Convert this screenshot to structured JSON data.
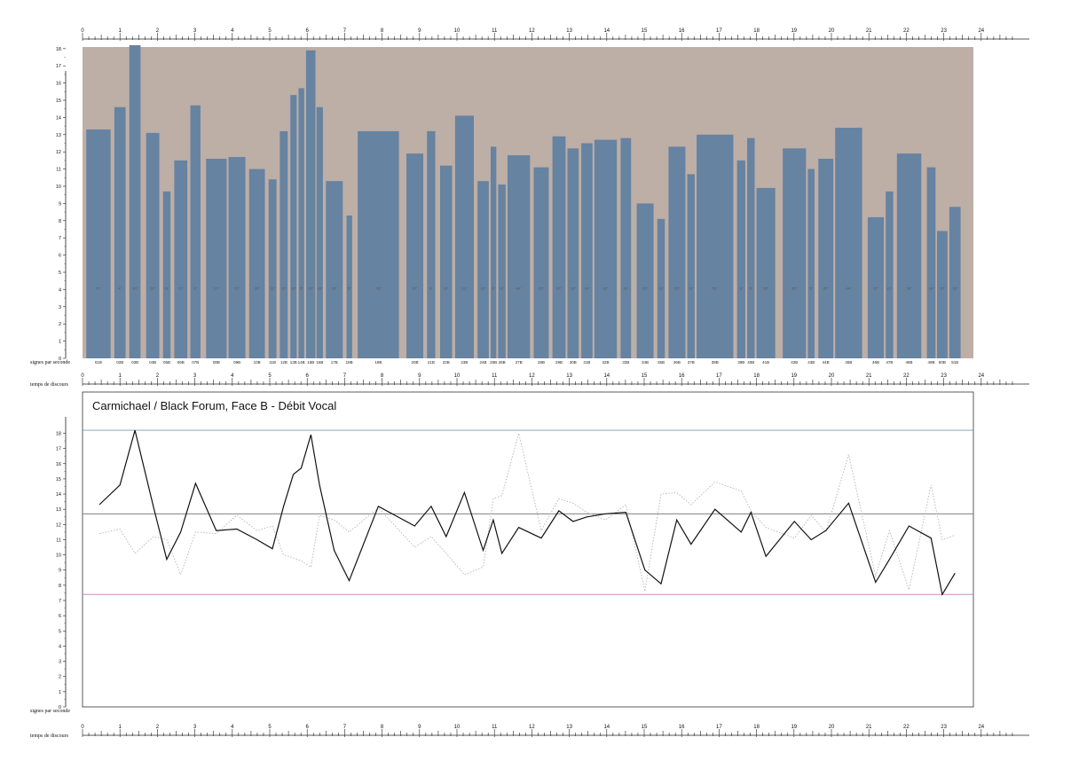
{
  "chart_data": [
    {
      "type": "bar",
      "ylabel": "signes par seconde",
      "xlabel": "temps de discours",
      "ylim": [
        0,
        19
      ],
      "xlim": [
        0,
        23.3
      ],
      "x_ticks": [
        "0",
        "1",
        "2",
        "3",
        "4",
        "5",
        "6",
        "7",
        "8",
        "9",
        "10",
        "11",
        "12",
        "13",
        "14",
        "15",
        "16",
        "17",
        "18",
        "19",
        "20",
        "21",
        "22",
        "23",
        "24"
      ],
      "y_ticks": [
        "0",
        "1",
        "2",
        "3",
        "4",
        "5",
        "6",
        "7",
        "8",
        "9",
        "10",
        "11",
        "12",
        "13",
        "14",
        "15",
        "16",
        "17",
        "18"
      ],
      "bars": [
        {
          "start": 0.1,
          "end": 0.75,
          "value": 13.3,
          "label": "01B",
          "dur": "21\""
        },
        {
          "start": 0.85,
          "end": 1.15,
          "value": 14.6,
          "label": "02B",
          "dur": "4\""
        },
        {
          "start": 1.25,
          "end": 1.55,
          "value": 18.2,
          "label": "03B",
          "dur": "10\""
        },
        {
          "start": 1.7,
          "end": 2.05,
          "value": 13.1,
          "label": "04B",
          "dur": "22\""
        },
        {
          "start": 2.15,
          "end": 2.35,
          "value": 9.7,
          "label": "05B",
          "dur": "11\""
        },
        {
          "start": 2.45,
          "end": 2.8,
          "value": 11.5,
          "label": "06B",
          "dur": "11\""
        },
        {
          "start": 2.88,
          "end": 3.15,
          "value": 14.7,
          "label": "07B",
          "dur": "6\""
        },
        {
          "start": 3.3,
          "end": 3.85,
          "value": 11.6,
          "label": "08B",
          "dur": "17\""
        },
        {
          "start": 3.9,
          "end": 4.35,
          "value": 11.7,
          "label": "09B",
          "dur": "21\""
        },
        {
          "start": 4.45,
          "end": 4.87,
          "value": 11.0,
          "label": "10B",
          "dur": "20\""
        },
        {
          "start": 4.97,
          "end": 5.18,
          "value": 10.4,
          "label": "11B",
          "dur": "11\""
        },
        {
          "start": 5.27,
          "end": 5.48,
          "value": 13.2,
          "label": "12B",
          "dur": "11\""
        },
        {
          "start": 5.55,
          "end": 5.72,
          "value": 15.3,
          "label": "13B",
          "dur": "15\""
        },
        {
          "start": 5.77,
          "end": 5.92,
          "value": 15.7,
          "label": "14B",
          "dur": "5\""
        },
        {
          "start": 5.97,
          "end": 6.22,
          "value": 17.9,
          "label": "15B",
          "dur": "15\""
        },
        {
          "start": 6.25,
          "end": 6.42,
          "value": 14.6,
          "label": "16B",
          "dur": "10\""
        },
        {
          "start": 6.5,
          "end": 6.95,
          "value": 10.3,
          "label": "17B",
          "dur": "20\""
        },
        {
          "start": 7.05,
          "end": 7.2,
          "value": 8.3,
          "label": "18B",
          "dur": "5\""
        },
        {
          "start": 7.35,
          "end": 8.45,
          "value": 13.2,
          "label": "19B",
          "dur": "1'8\""
        },
        {
          "start": 8.65,
          "end": 9.1,
          "value": 11.9,
          "label": "20B",
          "dur": "22\""
        },
        {
          "start": 9.2,
          "end": 9.42,
          "value": 13.2,
          "label": "21B",
          "dur": "9\""
        },
        {
          "start": 9.55,
          "end": 9.87,
          "value": 11.2,
          "label": "22B",
          "dur": "13\""
        },
        {
          "start": 9.95,
          "end": 10.45,
          "value": 14.1,
          "label": "23B",
          "dur": "21\""
        },
        {
          "start": 10.55,
          "end": 10.85,
          "value": 10.3,
          "label": "24B",
          "dur": "12\""
        },
        {
          "start": 10.9,
          "end": 11.05,
          "value": 12.3,
          "label": "25B",
          "dur": "6\""
        },
        {
          "start": 11.1,
          "end": 11.3,
          "value": 10.1,
          "label": "26B",
          "dur": "11\""
        },
        {
          "start": 11.35,
          "end": 11.95,
          "value": 11.8,
          "label": "27B",
          "dur": "40\""
        },
        {
          "start": 12.05,
          "end": 12.45,
          "value": 11.1,
          "label": "28B",
          "dur": "22\""
        },
        {
          "start": 12.55,
          "end": 12.9,
          "value": 12.9,
          "label": "29B",
          "dur": "22\""
        },
        {
          "start": 12.95,
          "end": 13.25,
          "value": 12.2,
          "label": "30B",
          "dur": "10\""
        },
        {
          "start": 13.32,
          "end": 13.62,
          "value": 12.5,
          "label": "31B",
          "dur": "14\""
        },
        {
          "start": 13.67,
          "end": 14.27,
          "value": 12.7,
          "label": "32B",
          "dur": "31\""
        },
        {
          "start": 14.37,
          "end": 14.65,
          "value": 12.8,
          "label": "33B",
          "dur": "11\""
        },
        {
          "start": 14.8,
          "end": 15.25,
          "value": 9.0,
          "label": "34B",
          "dur": "21\""
        },
        {
          "start": 15.35,
          "end": 15.55,
          "value": 8.1,
          "label": "35B",
          "dur": "11\""
        },
        {
          "start": 15.65,
          "end": 16.1,
          "value": 12.3,
          "label": "36B",
          "dur": "20\""
        },
        {
          "start": 16.15,
          "end": 16.35,
          "value": 10.7,
          "label": "37B",
          "dur": "11\""
        },
        {
          "start": 16.4,
          "end": 17.38,
          "value": 13.0,
          "label": "38B",
          "dur": "51\""
        },
        {
          "start": 17.48,
          "end": 17.7,
          "value": 11.5,
          "label": "39B",
          "dur": "9\""
        },
        {
          "start": 17.75,
          "end": 17.95,
          "value": 12.8,
          "label": "40B",
          "dur": "5\""
        },
        {
          "start": 18.0,
          "end": 18.5,
          "value": 9.9,
          "label": "41B",
          "dur": "20\""
        },
        {
          "start": 18.7,
          "end": 19.32,
          "value": 12.2,
          "label": "42B",
          "dur": "30\""
        },
        {
          "start": 19.37,
          "end": 19.55,
          "value": 11.0,
          "label": "43B",
          "dur": "5\""
        },
        {
          "start": 19.65,
          "end": 20.05,
          "value": 11.6,
          "label": "44B",
          "dur": "22\""
        },
        {
          "start": 20.1,
          "end": 20.82,
          "value": 13.4,
          "label": "45B",
          "dur": "44\""
        },
        {
          "start": 20.97,
          "end": 21.4,
          "value": 8.2,
          "label": "46B",
          "dur": "21\""
        },
        {
          "start": 21.45,
          "end": 21.65,
          "value": 9.7,
          "label": "47B",
          "dur": "12\""
        },
        {
          "start": 21.75,
          "end": 22.4,
          "value": 11.9,
          "label": "48B",
          "dur": "30\""
        },
        {
          "start": 22.55,
          "end": 22.78,
          "value": 11.1,
          "label": "49B",
          "dur": "14\""
        },
        {
          "start": 22.82,
          "end": 23.1,
          "value": 7.4,
          "label": "50B",
          "dur": "15\""
        },
        {
          "start": 23.15,
          "end": 23.45,
          "value": 8.8,
          "label": "51B",
          "dur": "18\""
        }
      ]
    },
    {
      "type": "line",
      "title": "Carmichael / Black Forum, Face B - Débit Vocal",
      "ylabel": "signes par seconde",
      "xlabel": "temps de discours",
      "ylim": [
        0,
        19
      ],
      "xlim": [
        0,
        23.3
      ],
      "x_ticks": [
        "0",
        "1",
        "2",
        "3",
        "4",
        "5",
        "6",
        "7",
        "8",
        "9",
        "10",
        "11",
        "12",
        "13",
        "14",
        "15",
        "16",
        "17",
        "18",
        "19",
        "20",
        "21",
        "22",
        "23",
        "24"
      ],
      "y_ticks": [
        "0",
        "1",
        "2",
        "3",
        "4",
        "5",
        "6",
        "7",
        "8",
        "9",
        "10",
        "11",
        "12",
        "13",
        "14",
        "15",
        "16",
        "17",
        "18"
      ],
      "reference_lines": [
        {
          "value": 18.2,
          "color": "#7f9bb0"
        },
        {
          "value": 12.7,
          "color": "#6e6e6e"
        },
        {
          "value": 7.4,
          "color": "#c678b7"
        }
      ],
      "series": [
        {
          "color": "#111111",
          "style": "solid",
          "x": [
            0.45,
            1.0,
            1.4,
            1.9,
            2.25,
            2.62,
            3.02,
            3.57,
            4.12,
            4.66,
            5.07,
            5.37,
            5.63,
            5.84,
            6.1,
            6.33,
            6.72,
            7.12,
            7.9,
            8.87,
            9.31,
            9.71,
            10.2,
            10.7,
            10.97,
            11.2,
            11.65,
            12.25,
            12.72,
            13.1,
            13.47,
            13.97,
            14.51,
            15.02,
            15.45,
            15.87,
            16.25,
            16.89,
            17.59,
            17.85,
            18.25,
            19.01,
            19.46,
            19.85,
            20.46,
            21.18,
            21.55,
            22.07,
            22.66,
            22.96,
            23.3
          ],
          "values": [
            13.3,
            14.6,
            18.2,
            13.1,
            9.7,
            11.5,
            14.7,
            11.6,
            11.7,
            11.0,
            10.4,
            13.2,
            15.3,
            15.7,
            17.9,
            14.6,
            10.3,
            8.3,
            13.2,
            11.9,
            13.2,
            11.2,
            14.1,
            10.3,
            12.3,
            10.1,
            11.8,
            11.1,
            12.9,
            12.2,
            12.5,
            12.7,
            12.8,
            9.0,
            8.1,
            12.3,
            10.7,
            13.0,
            11.5,
            12.8,
            9.9,
            12.2,
            11.0,
            11.6,
            13.4,
            8.2,
            9.7,
            11.9,
            11.1,
            7.4,
            8.8
          ]
        },
        {
          "color": "#b4b4b4",
          "style": "dotted",
          "x": [
            0.45,
            1.0,
            1.4,
            1.9,
            2.25,
            2.62,
            3.02,
            3.57,
            4.12,
            4.66,
            5.07,
            5.37,
            5.63,
            5.84,
            6.1,
            6.33,
            6.72,
            7.12,
            7.9,
            8.87,
            9.31,
            9.71,
            10.2,
            10.7,
            10.97,
            11.2,
            11.65,
            12.25,
            12.72,
            13.1,
            13.47,
            13.97,
            14.51,
            15.02,
            15.45,
            15.87,
            16.25,
            16.89,
            17.59,
            17.85,
            18.25,
            19.01,
            19.46,
            19.85,
            20.46,
            21.18,
            21.55,
            22.07,
            22.66,
            22.96,
            23.3
          ],
          "values": [
            11.4,
            11.7,
            10.1,
            11.2,
            11.0,
            8.7,
            11.5,
            11.4,
            12.6,
            11.6,
            11.9,
            10.0,
            9.8,
            9.6,
            9.2,
            12.6,
            12.3,
            11.5,
            13.1,
            10.5,
            11.2,
            10.1,
            8.7,
            9.2,
            13.7,
            13.9,
            18.0,
            11.6,
            13.7,
            13.4,
            12.8,
            12.3,
            13.3,
            7.6,
            14.0,
            14.1,
            13.3,
            14.8,
            14.2,
            12.9,
            11.8,
            11.1,
            12.6,
            11.5,
            16.6,
            8.6,
            11.6,
            7.7,
            14.6,
            11.0,
            11.3
          ]
        }
      ]
    }
  ]
}
